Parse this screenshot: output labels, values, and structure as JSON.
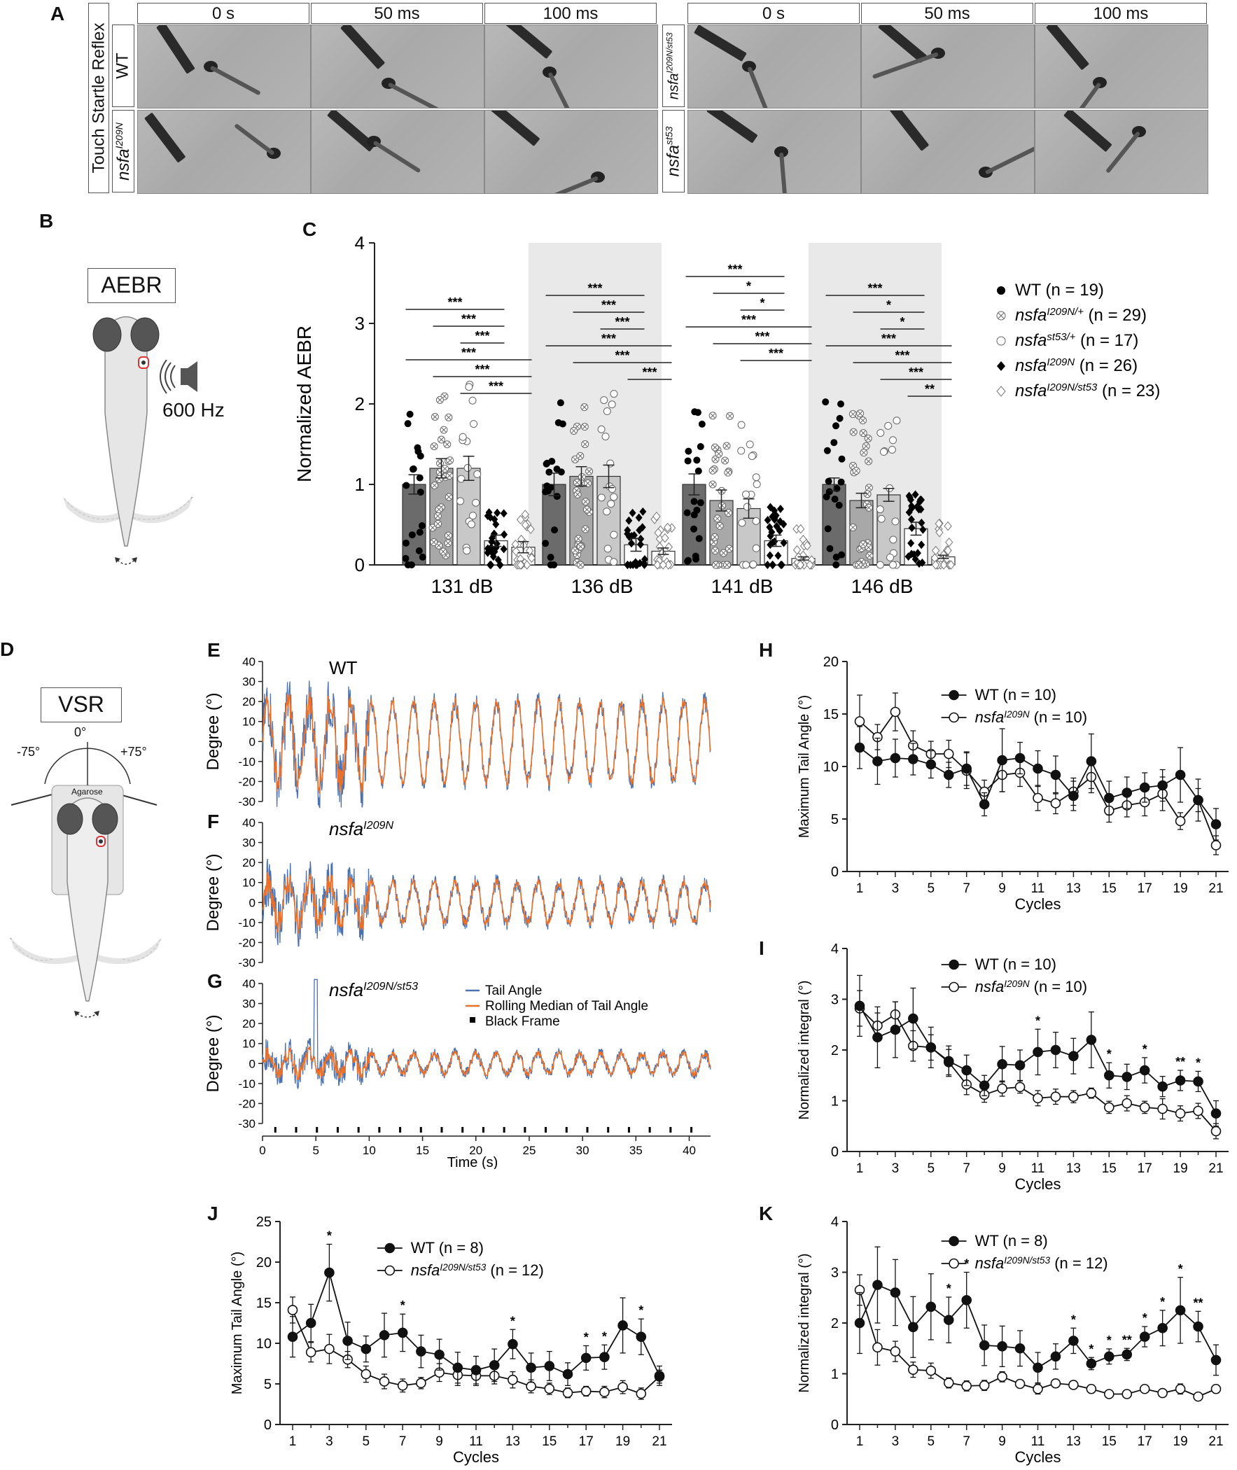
{
  "panels": {
    "A": "A",
    "B": "B",
    "C": "C",
    "D": "D",
    "E": "E",
    "F": "F",
    "G": "G",
    "H": "H",
    "I": "I",
    "J": "J",
    "K": "K"
  },
  "panel_a": {
    "side_label": "Touch Startle Reflex",
    "times": [
      "0 s",
      "50 ms",
      "100 ms"
    ],
    "row_wt": "WT",
    "row_i209n": "nsfa",
    "row_i209n_sup": "I209N",
    "row_compound": "nsfa",
    "row_compound_sup": "I209N/st53",
    "row_st53": "nsfa",
    "row_st53_sup": "st53"
  },
  "panel_b": {
    "title": "AEBR",
    "freq": "600 Hz"
  },
  "panel_d": {
    "title": "VSR",
    "deg0": "0°",
    "degm": "-75°",
    "degp": "+75°",
    "agarose": "Agarose"
  },
  "chart_data": [
    {
      "id": "C",
      "type": "bar",
      "ylabel": "Normalized AEBR",
      "ylim": [
        0,
        4
      ],
      "yticks": [
        0,
        1,
        2,
        3,
        4
      ],
      "categories": [
        "131 dB",
        "136 dB",
        "141 dB",
        "146 dB"
      ],
      "series": [
        {
          "name": "WT (n = 19)",
          "italic": "",
          "values": [
            1.0,
            1.0,
            1.0,
            1.0
          ],
          "err": [
            0.12,
            0.14,
            0.13,
            0.08
          ],
          "color": "#6b6b6b",
          "marker": "filled-circle"
        },
        {
          "name": "(n = 29)",
          "italic": "nsfa",
          "sup": "I209N/+",
          "values": [
            1.2,
            1.1,
            0.8,
            0.8
          ],
          "err": [
            0.12,
            0.12,
            0.13,
            0.09
          ],
          "color": "#a8a8a8",
          "marker": "cross-circle"
        },
        {
          "name": "(n = 17)",
          "italic": "nsfa",
          "sup": "st53/+",
          "values": [
            1.2,
            1.1,
            0.7,
            0.87
          ],
          "err": [
            0.15,
            0.14,
            0.12,
            0.08
          ],
          "color": "#c8c8c8",
          "marker": "open-circle"
        },
        {
          "name": "",
          "italic": "nsfa",
          "sup": "I209N",
          "values": [
            0.3,
            0.25,
            0.3,
            0.45
          ],
          "err": [
            0.07,
            0.08,
            0.07,
            0.08
          ],
          "color": "#ffffff",
          "marker": "filled-diamond"
        },
        {
          "name": "(n = 23)",
          "italic": "nsfa",
          "sup": "I209N/st53",
          "values": [
            0.22,
            0.17,
            0.08,
            0.1
          ],
          "err": [
            0.07,
            0.04,
            0.02,
            0.02
          ],
          "color": "#ffffff",
          "marker": "open-diamond"
        }
      ],
      "legend_counts": [
        "(n = 19)",
        "(n = 29)",
        "(n = 17)",
        "(n = 26)",
        "(n = 23)"
      ],
      "shaded_groups": [
        1,
        3
      ],
      "significance": [
        [
          [
            0,
            3,
            "***"
          ],
          [
            1,
            3,
            "***"
          ],
          [
            2,
            3,
            "***"
          ],
          [
            0,
            4,
            "***"
          ],
          [
            1,
            4,
            "***"
          ],
          [
            2,
            4,
            "***"
          ]
        ],
        [
          [
            0,
            3,
            "***"
          ],
          [
            1,
            3,
            "***"
          ],
          [
            2,
            3,
            "***"
          ],
          [
            0,
            4,
            "***"
          ],
          [
            1,
            4,
            "***"
          ],
          [
            3,
            4,
            "***"
          ]
        ],
        [
          [
            0,
            3,
            "***"
          ],
          [
            1,
            3,
            "*"
          ],
          [
            2,
            3,
            "*"
          ],
          [
            0,
            4,
            "***"
          ],
          [
            1,
            4,
            "***"
          ],
          [
            2,
            4,
            "***"
          ]
        ],
        [
          [
            0,
            3,
            "***"
          ],
          [
            1,
            3,
            "*"
          ],
          [
            2,
            3,
            "*"
          ],
          [
            0,
            4,
            "***"
          ],
          [
            1,
            4,
            "***"
          ],
          [
            2,
            4,
            "***"
          ],
          [
            3,
            4,
            "**"
          ]
        ]
      ]
    },
    {
      "id": "E",
      "type": "line",
      "title": "WT",
      "ylabel": "Degree (°)",
      "ylim": [
        -30,
        40
      ],
      "yticks": [
        -30,
        -20,
        -10,
        0,
        10,
        20,
        30,
        40
      ],
      "amplitude": 20,
      "noise": 14
    },
    {
      "id": "F",
      "type": "line",
      "title": "nsfa",
      "title_sup": "I209N",
      "ylabel": "Degree (°)",
      "ylim": [
        -30,
        40
      ],
      "yticks": [
        -30,
        -20,
        -10,
        0,
        10,
        20,
        30,
        40
      ],
      "amplitude": 10,
      "noise": 12
    },
    {
      "id": "G",
      "type": "line",
      "title": "nsfa",
      "title_sup": "I209N/st53",
      "ylabel": "Degree (°)",
      "xlabel": "Time (s)",
      "ylim": [
        -30,
        40
      ],
      "yticks": [
        -30,
        -20,
        -10,
        0,
        10,
        20,
        30,
        40
      ],
      "xlim": [
        0,
        42
      ],
      "xticks": [
        0,
        5,
        10,
        15,
        20,
        25,
        30,
        35,
        40
      ],
      "amplitude": 5,
      "noise": 8,
      "legend": [
        "Tail Angle",
        "Rolling Median of Tail Angle",
        "Black Frame"
      ],
      "colors": {
        "tail": "#4a72b0",
        "median": "#e8702a"
      }
    },
    {
      "id": "H",
      "type": "line",
      "ylabel": "Maximum Tail Angle (°)",
      "xlabel": "Cycles",
      "ylim": [
        0,
        20
      ],
      "yticks": [
        0,
        5,
        10,
        15,
        20
      ],
      "x": [
        1,
        2,
        3,
        4,
        5,
        6,
        7,
        8,
        9,
        10,
        11,
        12,
        13,
        14,
        15,
        16,
        17,
        18,
        19,
        20,
        21
      ],
      "xticks": [
        1,
        3,
        5,
        7,
        9,
        11,
        13,
        15,
        17,
        19,
        21
      ],
      "series": [
        {
          "name": "WT (n = 10)",
          "filled": true,
          "values": [
            11.8,
            10.5,
            10.8,
            10.7,
            10.2,
            9.2,
            9.8,
            6.4,
            10.6,
            10.8,
            9.8,
            9.2,
            7.2,
            10.5,
            7.0,
            7.5,
            8.0,
            8.2,
            9.2,
            6.8,
            4.5
          ],
          "err": [
            2,
            2.2,
            1.8,
            1.5,
            1.3,
            1.2,
            1.6,
            1.1,
            3,
            1.5,
            1.7,
            1.8,
            1.4,
            2.6,
            1.6,
            1.5,
            1.4,
            1.5,
            2.6,
            2,
            1.5
          ]
        },
        {
          "name": "(n = 10)",
          "italic": "nsfa",
          "sup": "I209N",
          "filled": false,
          "values": [
            14.3,
            12.8,
            15.2,
            12.0,
            11.2,
            11.2,
            9.6,
            7.6,
            9.2,
            9.4,
            7.0,
            6.5,
            7.6,
            9.0,
            5.8,
            6.3,
            6.6,
            7.4,
            4.8,
            6.8,
            2.5
          ],
          "err": [
            2.5,
            1.2,
            1.8,
            1.4,
            1.2,
            1.3,
            1.7,
            1.1,
            1.6,
            1.3,
            1.2,
            1.0,
            1.3,
            1.5,
            1.1,
            1.1,
            1.3,
            1.6,
            0.8,
            1.1,
            0.9
          ]
        }
      ]
    },
    {
      "id": "I",
      "type": "line",
      "ylabel": "Normalized integral (°)",
      "xlabel": "Cycles",
      "ylim": [
        0,
        4
      ],
      "yticks": [
        0,
        1,
        2,
        3,
        4
      ],
      "x": [
        1,
        2,
        3,
        4,
        5,
        6,
        7,
        8,
        9,
        10,
        11,
        12,
        13,
        14,
        15,
        16,
        17,
        18,
        19,
        20,
        21
      ],
      "xticks": [
        1,
        3,
        5,
        7,
        9,
        11,
        13,
        15,
        17,
        19,
        21
      ],
      "series": [
        {
          "name": "WT (n = 10)",
          "filled": true,
          "values": [
            2.87,
            2.25,
            2.4,
            2.62,
            2.05,
            1.78,
            1.6,
            1.3,
            1.72,
            1.7,
            1.96,
            2.0,
            1.88,
            2.2,
            1.5,
            1.47,
            1.6,
            1.28,
            1.4,
            1.38,
            0.75
          ],
          "err": [
            0.6,
            0.6,
            0.55,
            0.6,
            0.4,
            0.3,
            0.3,
            0.2,
            0.35,
            0.3,
            0.45,
            0.35,
            0.35,
            0.55,
            0.25,
            0.25,
            0.25,
            0.2,
            0.2,
            0.2,
            0.25
          ]
        },
        {
          "name": "(n = 10)",
          "italic": "nsfa",
          "sup": "I209N",
          "filled": false,
          "values": [
            2.82,
            2.48,
            2.7,
            2.08,
            2.05,
            1.76,
            1.32,
            1.12,
            1.24,
            1.27,
            1.05,
            1.08,
            1.08,
            1.15,
            0.87,
            0.95,
            0.87,
            0.84,
            0.75,
            0.8,
            0.4
          ],
          "err": [
            0.35,
            0.25,
            0.25,
            0.3,
            0.25,
            0.25,
            0.2,
            0.15,
            0.15,
            0.12,
            0.15,
            0.15,
            0.12,
            0.1,
            0.12,
            0.15,
            0.12,
            0.2,
            0.15,
            0.15,
            0.15
          ]
        }
      ],
      "stars": [
        [
          11,
          "*"
        ],
        [
          15,
          "*"
        ],
        [
          17,
          "*"
        ],
        [
          19,
          "**"
        ],
        [
          20,
          "*"
        ]
      ]
    },
    {
      "id": "J",
      "type": "line",
      "ylabel": "Maximum Tail Angle (°)",
      "xlabel": "Cycles",
      "ylim": [
        0,
        25
      ],
      "yticks": [
        0,
        5,
        10,
        15,
        20,
        25
      ],
      "x": [
        1,
        2,
        3,
        4,
        5,
        6,
        7,
        8,
        9,
        10,
        11,
        12,
        13,
        14,
        15,
        16,
        17,
        18,
        19,
        20,
        21
      ],
      "xticks": [
        1,
        3,
        5,
        7,
        9,
        11,
        13,
        15,
        17,
        19,
        21
      ],
      "series": [
        {
          "name": "WT (n = 8)",
          "filled": true,
          "values": [
            10.8,
            12.5,
            18.7,
            10.3,
            9.3,
            11.0,
            11.3,
            9.0,
            8.6,
            7.0,
            6.7,
            7.3,
            9.9,
            7.0,
            7.2,
            6.2,
            8.2,
            8.3,
            12.2,
            10.8,
            6.0
          ],
          "err": [
            2.5,
            2.3,
            3.5,
            2.3,
            1.6,
            2.7,
            2.3,
            2.0,
            1.9,
            1.9,
            1.7,
            2.0,
            1.8,
            1.8,
            1.8,
            1.4,
            1.5,
            1.5,
            3.4,
            2.2,
            1.2
          ]
        },
        {
          "name": "(n = 12)",
          "italic": "nsfa",
          "sup": "I209N/st53",
          "filled": false,
          "values": [
            14.1,
            8.9,
            9.3,
            8.0,
            6.2,
            5.3,
            4.8,
            5.1,
            6.4,
            6.1,
            6.0,
            6.0,
            5.5,
            4.7,
            4.4,
            3.9,
            4.1,
            4.0,
            4.6,
            3.8,
            5.9
          ],
          "err": [
            1.6,
            1.2,
            1.8,
            1.0,
            1.0,
            0.9,
            0.8,
            0.7,
            1.1,
            1.3,
            1.2,
            1.0,
            1.0,
            0.8,
            0.7,
            0.6,
            0.6,
            0.7,
            0.8,
            0.7,
            0.8
          ]
        }
      ],
      "stars": [
        [
          3,
          "*"
        ],
        [
          7,
          "*"
        ],
        [
          13,
          "*"
        ],
        [
          17,
          "*"
        ],
        [
          18,
          "*"
        ],
        [
          20,
          "*"
        ]
      ]
    },
    {
      "id": "K",
      "type": "line",
      "ylabel": "Normalized integral (°)",
      "xlabel": "Cycles",
      "ylim": [
        0,
        4
      ],
      "yticks": [
        0,
        1,
        2,
        3,
        4
      ],
      "x": [
        1,
        2,
        3,
        4,
        5,
        6,
        7,
        8,
        9,
        10,
        11,
        12,
        13,
        14,
        15,
        16,
        17,
        18,
        19,
        20,
        21
      ],
      "xticks": [
        1,
        3,
        5,
        7,
        9,
        11,
        13,
        15,
        17,
        19,
        21
      ],
      "series": [
        {
          "name": "WT (n = 8)",
          "filled": true,
          "values": [
            2.0,
            2.75,
            2.6,
            1.92,
            2.32,
            2.06,
            2.45,
            1.56,
            1.54,
            1.5,
            1.12,
            1.34,
            1.65,
            1.2,
            1.34,
            1.38,
            1.73,
            1.9,
            2.25,
            1.93,
            1.27
          ],
          "err": [
            0.6,
            0.75,
            0.65,
            0.6,
            0.65,
            0.45,
            0.55,
            0.4,
            0.4,
            0.35,
            0.3,
            0.25,
            0.25,
            0.12,
            0.15,
            0.12,
            0.2,
            0.35,
            0.65,
            0.3,
            0.3
          ]
        },
        {
          "name": "(n = 12)",
          "italic": "nsfa",
          "sup": "I209N/st53",
          "filled": false,
          "values": [
            2.65,
            1.52,
            1.44,
            1.08,
            1.06,
            0.82,
            0.76,
            0.77,
            0.94,
            0.8,
            0.7,
            0.81,
            0.78,
            0.7,
            0.6,
            0.6,
            0.7,
            0.62,
            0.7,
            0.55,
            0.7
          ],
          "err": [
            0.3,
            0.35,
            0.2,
            0.15,
            0.15,
            0.1,
            0.1,
            0.1,
            0.1,
            0.08,
            0.1,
            0.08,
            0.08,
            0.08,
            0.05,
            0.05,
            0.06,
            0.05,
            0.1,
            0.05,
            0.08
          ]
        }
      ],
      "stars": [
        [
          6,
          "*"
        ],
        [
          7,
          "*"
        ],
        [
          13,
          "*"
        ],
        [
          14,
          "*"
        ],
        [
          15,
          "*"
        ],
        [
          16,
          "**"
        ],
        [
          17,
          "*"
        ],
        [
          18,
          "*"
        ],
        [
          19,
          "*"
        ],
        [
          20,
          "**"
        ]
      ]
    }
  ]
}
